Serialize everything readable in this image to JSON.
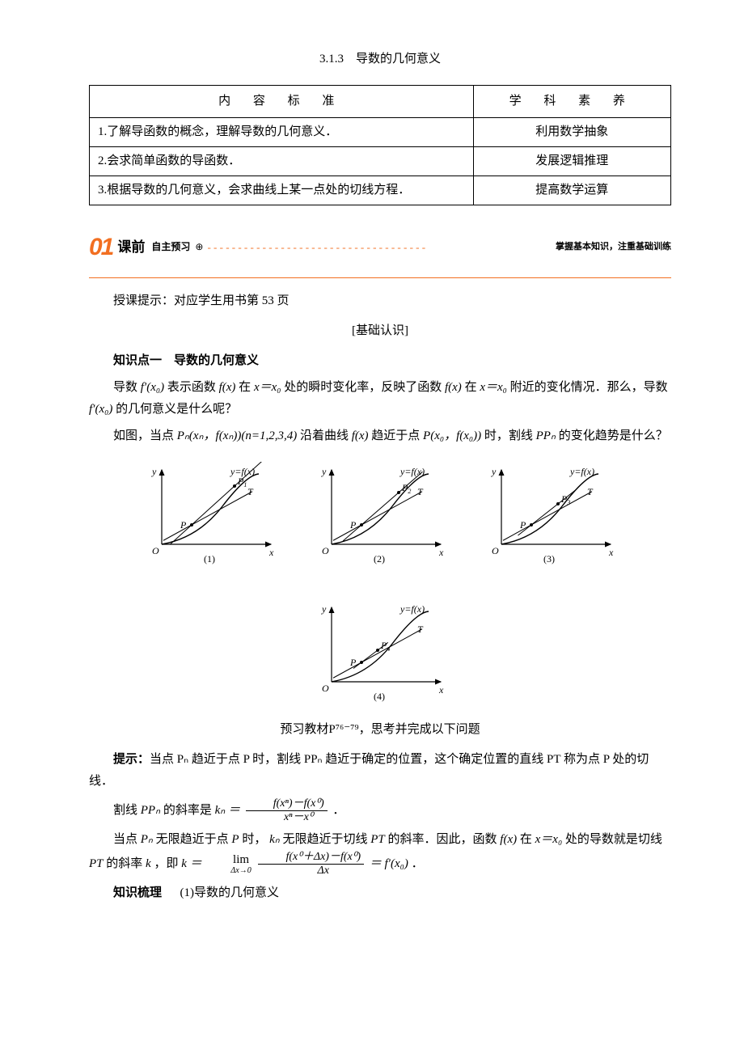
{
  "title": "3.1.3　导数的几何意义",
  "table": {
    "headers": [
      "内 容 标 准",
      "学 科 素 养"
    ],
    "rows": [
      [
        "1.了解导函数的概念，理解导数的几何意义．",
        "利用数学抽象"
      ],
      [
        "2.会求简单函数的导函数．",
        "发展逻辑推理"
      ],
      [
        "3.根据导数的几何意义，会求曲线上某一点处的切线方程．",
        "提高数学运算"
      ]
    ],
    "col_widths": [
      "66%",
      "34%"
    ]
  },
  "banner": {
    "num": "01",
    "label": "课前",
    "sub": "自主预习",
    "arrow": "⊕",
    "tail": "掌握基本知识，注重基础训练",
    "accent_color": "#f26f21"
  },
  "line_ref": "授课提示：对应学生用书第 53 页",
  "sec_heading": "[基础认识]",
  "kp1_title": "知识点一　导数的几何意义",
  "para1a": "导数 ",
  "para1b": "表示函数 ",
  "para1c": " 在 ",
  "para1d": " 处的瞬时变化率，反映了函数 ",
  "para1e": " 在 ",
  "para1f": " 附近的变化情况．那么，导数 ",
  "para1g": " 的几何意义是什么呢？",
  "para2a": "如图，当点 ",
  "para2b": " 沿着曲线 ",
  "para2c": " 趋近于点 ",
  "para2d": " 时，割线 ",
  "para2e": " 的变化趋势是什么？",
  "figs": {
    "curve_label": "y=f(x)",
    "P_label": "P",
    "T_label": "T",
    "O_label": "O",
    "x_label": "x",
    "y_label": "y",
    "items": [
      {
        "pn": "P",
        "pn_sub": "1",
        "cap": "(1)"
      },
      {
        "pn": "P",
        "pn_sub": "2",
        "cap": "(2)"
      },
      {
        "pn": "P",
        "pn_sub": "3",
        "cap": "(3)"
      },
      {
        "pn": "P",
        "pn_sub": "4",
        "cap": "(4)"
      }
    ],
    "colors": {
      "stroke": "#000000",
      "fill": "#000000",
      "bg": "#ffffff"
    }
  },
  "preview_text": "预习教材P⁷⁶⁻⁷⁹，思考并完成以下问题",
  "hint_label": "提示：",
  "hint_text": "当点 Pₙ 趋近于点 P 时，割线 PPₙ 趋近于确定的位置，这个确定位置的直线 PT 称为点 P 处的切线．",
  "slope_prefix": "割线 ",
  "slope_mid": " 的斜率是 ",
  "derive1a": "当点 ",
  "derive1b": " 无限趋近于点 ",
  "derive1c": " 时，",
  "derive1d": " 无限趋近于切线 ",
  "derive1e": " 的斜率．因此，函数 ",
  "derive1f": " 在 ",
  "derive1g": " 处的导数就是切线 ",
  "derive1h": " 的斜率 ",
  "derive1i": "，即 ",
  "kp_sort": "知识梳理",
  "kp_sort_item": "(1)导数的几何意义",
  "math": {
    "fprime_x0": "f′(x₀)",
    "fx": "f(x)",
    "x_eq_x0": "x＝x₀",
    "Pn": "Pₙ(xₙ，f(xₙ))(n=1,2,3,4)",
    "P_pt": "P(x₀，f(x₀))",
    "PPn": "PPₙ",
    "kn": "kₙ",
    "eq": "＝",
    "frac_num1": "f(xⁿ)－f(x⁰)",
    "frac_den1": "xⁿ－x⁰",
    "Pn_short": "Pₙ",
    "P_short": "P",
    "kn_short": "kₙ",
    "PT": "PT",
    "k": "k",
    "lim_top": "lim",
    "lim_bot": "Δx→0",
    "frac_num2": "f(x⁰＋Δx)－f(x⁰)",
    "frac_den2": "Δx",
    "period": "．"
  }
}
